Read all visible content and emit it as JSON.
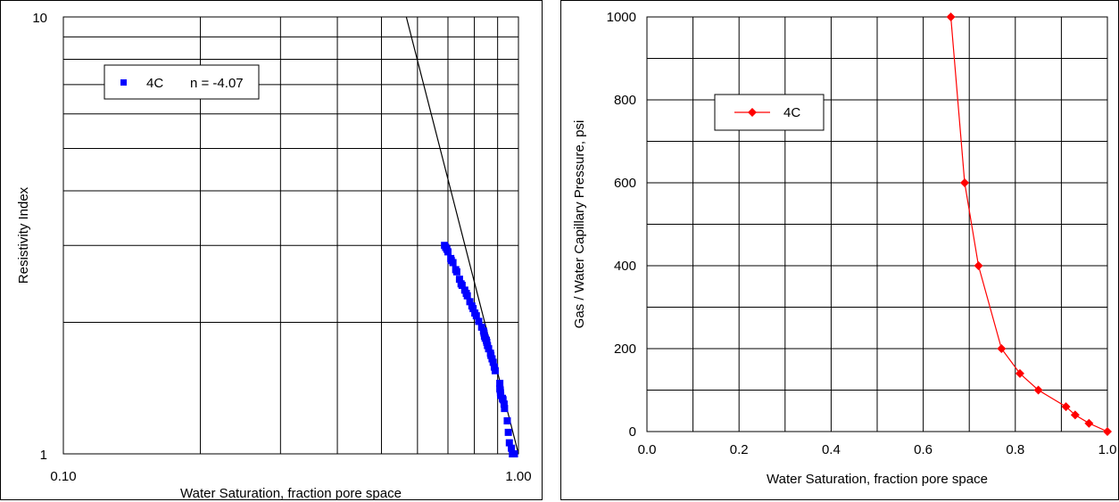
{
  "chart_data": [
    {
      "type": "scatter",
      "x_scale": "log",
      "y_scale": "log",
      "xlim": [
        0.1,
        1.0
      ],
      "ylim": [
        1,
        10
      ],
      "xlabel": "Water Saturation, fraction pore space",
      "ylabel": "Resistivity Index",
      "x_tick_labels": [
        "0.10",
        "1.00"
      ],
      "y_tick_labels": [
        "10",
        "1"
      ],
      "grid": true,
      "legend": {
        "position": "top-left",
        "entries": [
          {
            "label": "4C",
            "extra": "n = -4.07"
          }
        ]
      },
      "series": [
        {
          "name": "4C",
          "marker": "square",
          "color": "#0000ff",
          "x": [
            0.688,
            0.692,
            0.696,
            0.7,
            0.71,
            0.712,
            0.718,
            0.728,
            0.732,
            0.742,
            0.748,
            0.752,
            0.762,
            0.768,
            0.772,
            0.782,
            0.79,
            0.795,
            0.802,
            0.808,
            0.818,
            0.83,
            0.838,
            0.84,
            0.842,
            0.845,
            0.85,
            0.852,
            0.855,
            0.86,
            0.868,
            0.87,
            0.875,
            0.88,
            0.885,
            0.889,
            0.91,
            0.91,
            0.912,
            0.913,
            0.914,
            0.922,
            0.925,
            0.93,
            0.932,
            0.945,
            0.95,
            0.955,
            0.965,
            0.97,
            0.975,
            0.978,
            0.98
          ],
          "y": [
            3.0,
            2.97,
            2.94,
            2.9,
            2.8,
            2.77,
            2.74,
            2.64,
            2.61,
            2.51,
            2.45,
            2.43,
            2.37,
            2.33,
            2.3,
            2.23,
            2.18,
            2.15,
            2.1,
            2.07,
            2.01,
            1.95,
            1.91,
            1.89,
            1.86,
            1.84,
            1.82,
            1.8,
            1.77,
            1.74,
            1.7,
            1.68,
            1.65,
            1.62,
            1.58,
            1.55,
            1.45,
            1.41,
            1.4,
            1.38,
            1.36,
            1.34,
            1.33,
            1.3,
            1.27,
            1.19,
            1.12,
            1.06,
            1.03,
            1.0,
            1.0,
            1.0,
            1.0
          ]
        },
        {
          "name": "",
          "type": "line",
          "color": "#000000",
          "x": [
            0.567,
            1.0
          ],
          "y": [
            10.0,
            1.0
          ]
        }
      ]
    },
    {
      "type": "line",
      "xlim": [
        0.0,
        1.0
      ],
      "ylim": [
        0,
        1000
      ],
      "xlabel": "Water Saturation, fraction pore space",
      "ylabel": "Gas / Water Capillary Pressure, psi",
      "x_tick_labels": [
        "0.0",
        "0.2",
        "0.4",
        "0.6",
        "0.8",
        "1.0"
      ],
      "y_tick_labels": [
        "0",
        "200",
        "400",
        "600",
        "800",
        "1000"
      ],
      "grid": true,
      "legend": {
        "position": "top-left",
        "entries": [
          {
            "label": "4C"
          }
        ]
      },
      "series": [
        {
          "name": "4C",
          "marker": "diamond",
          "color": "#ff0000",
          "x": [
            0.66,
            0.69,
            0.72,
            0.77,
            0.81,
            0.85,
            0.91,
            0.93,
            0.96,
            1.0
          ],
          "y": [
            1000,
            600,
            400,
            200,
            140,
            100,
            60,
            40,
            20,
            0
          ]
        }
      ]
    }
  ]
}
